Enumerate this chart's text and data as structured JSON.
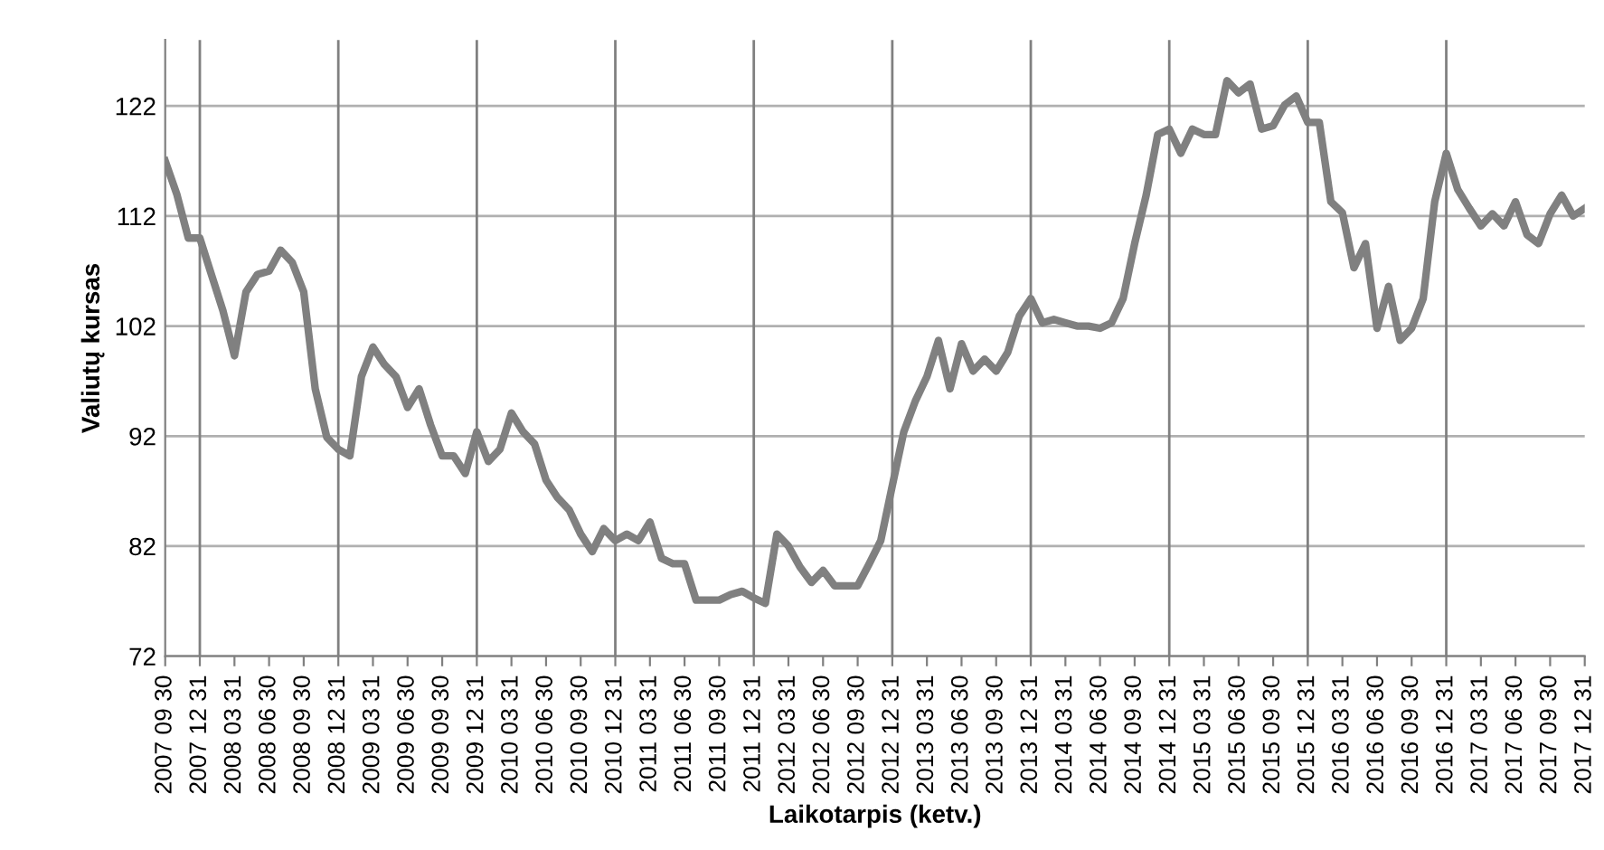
{
  "chart_data": {
    "type": "line",
    "xlabel": "Laikotarpis (ketv.)",
    "ylabel": "Valiutų kursas",
    "categories": [
      "2007 09 30",
      null,
      null,
      "2007 12 31",
      null,
      null,
      "2008 03 31",
      null,
      null,
      "2008 06 30",
      null,
      null,
      "2008 09 30",
      null,
      null,
      "2008 12 31",
      null,
      null,
      "2009 03 31",
      null,
      null,
      "2009 06 30",
      null,
      null,
      "2009 09 30",
      null,
      null,
      "2009 12 31",
      null,
      null,
      "2010 03 31",
      null,
      null,
      "2010 06 30",
      null,
      null,
      "2010 09 30",
      null,
      null,
      "2010 12 31",
      null,
      null,
      "2011 03 31",
      null,
      null,
      "2011 06 30",
      null,
      null,
      "2011 09 30",
      null,
      null,
      "2011 12 31",
      null,
      null,
      "2012 03 31",
      null,
      null,
      "2012 06 30",
      null,
      null,
      "2012 09 30",
      null,
      null,
      "2012 12 31",
      null,
      null,
      "2013 03 31",
      null,
      null,
      "2013 06 30",
      null,
      null,
      "2013 09 30",
      null,
      null,
      "2013 12 31",
      null,
      null,
      "2014 03 31",
      null,
      null,
      "2014 06 30",
      null,
      null,
      "2014 09 30",
      null,
      null,
      "2014 12 31",
      null,
      null,
      "2015 03 31",
      null,
      null,
      "2015 06 30",
      null,
      null,
      "2015 09 30",
      null,
      null,
      "2015 12 31",
      null,
      null,
      "2016 03 31",
      null,
      null,
      "2016 06 30",
      null,
      null,
      "2016 09 30",
      null,
      null,
      "2016 12 31",
      null,
      null,
      "2017 03 31",
      null,
      null,
      "2017 06 30",
      null,
      null,
      "2017 09 30",
      null,
      null,
      "2017 12 31"
    ],
    "series": [
      {
        "color": "#808080",
        "values": [
          117,
          114,
          110,
          110,
          106.7,
          103.4,
          99.3,
          105.1,
          106.7,
          107,
          108.9,
          107.8,
          105.1,
          96.3,
          91.9,
          90.8,
          90.2,
          97.4,
          100.1,
          98.5,
          97.4,
          94.6,
          96.3,
          93,
          90.2,
          90.2,
          88.6,
          92.4,
          89.7,
          90.8,
          94.1,
          92.4,
          91.3,
          88,
          86.4,
          85.3,
          83.1,
          81.5,
          83.6,
          82.5,
          83.1,
          82.5,
          84.2,
          80.9,
          80.4,
          80.4,
          77.1,
          77.1,
          77.1,
          77.6,
          77.9,
          77.3,
          76.8,
          83.1,
          82,
          80.1,
          78.7,
          79.8,
          78.4,
          78.4,
          78.4,
          80.4,
          82.5,
          87.5,
          92.4,
          95.2,
          97.4,
          100.7,
          96.3,
          100.4,
          97.9,
          99,
          97.9,
          99.6,
          102.9,
          104.5,
          102.3,
          102.6,
          102.3,
          102,
          102,
          101.8,
          102.3,
          104.5,
          109.5,
          113.9,
          119.4,
          119.9,
          117.7,
          119.9,
          119.4,
          119.4,
          124.3,
          123.2,
          124,
          119.9,
          120.2,
          122.1,
          122.9,
          120.5,
          120.5,
          113.3,
          112.3,
          107.3,
          109.5,
          101.8,
          105.6,
          100.7,
          101.8,
          104.5,
          113.3,
          117.7,
          114.4,
          112.7,
          111.1,
          112.2,
          111.1,
          113.3,
          110.3,
          109.5,
          112.2,
          113.9,
          112,
          112.7
        ]
      }
    ],
    "ylim": [
      72,
      128
    ],
    "yticks": [
      72,
      82,
      92,
      102,
      112,
      122
    ],
    "grid": "y",
    "marker": "none",
    "line_style": "solid",
    "ref_lines": [
      {
        "axis": "x",
        "value": "2007 12 31",
        "color": "#808080"
      },
      {
        "axis": "x",
        "value": "2008 12 31",
        "color": "#808080"
      },
      {
        "axis": "x",
        "value": "2009 12 31",
        "color": "#808080"
      },
      {
        "axis": "x",
        "value": "2010 12 31",
        "color": "#808080"
      },
      {
        "axis": "x",
        "value": "2011 12 31",
        "color": "#808080"
      },
      {
        "axis": "x",
        "value": "2012 12 31",
        "color": "#808080"
      },
      {
        "axis": "x",
        "value": "2013 12 31",
        "color": "#808080"
      },
      {
        "axis": "x",
        "value": "2014 12 31",
        "color": "#808080"
      },
      {
        "axis": "x",
        "value": "2015 12 31",
        "color": "#808080"
      },
      {
        "axis": "x",
        "value": "2016 12 31",
        "color": "#808080"
      }
    ]
  }
}
